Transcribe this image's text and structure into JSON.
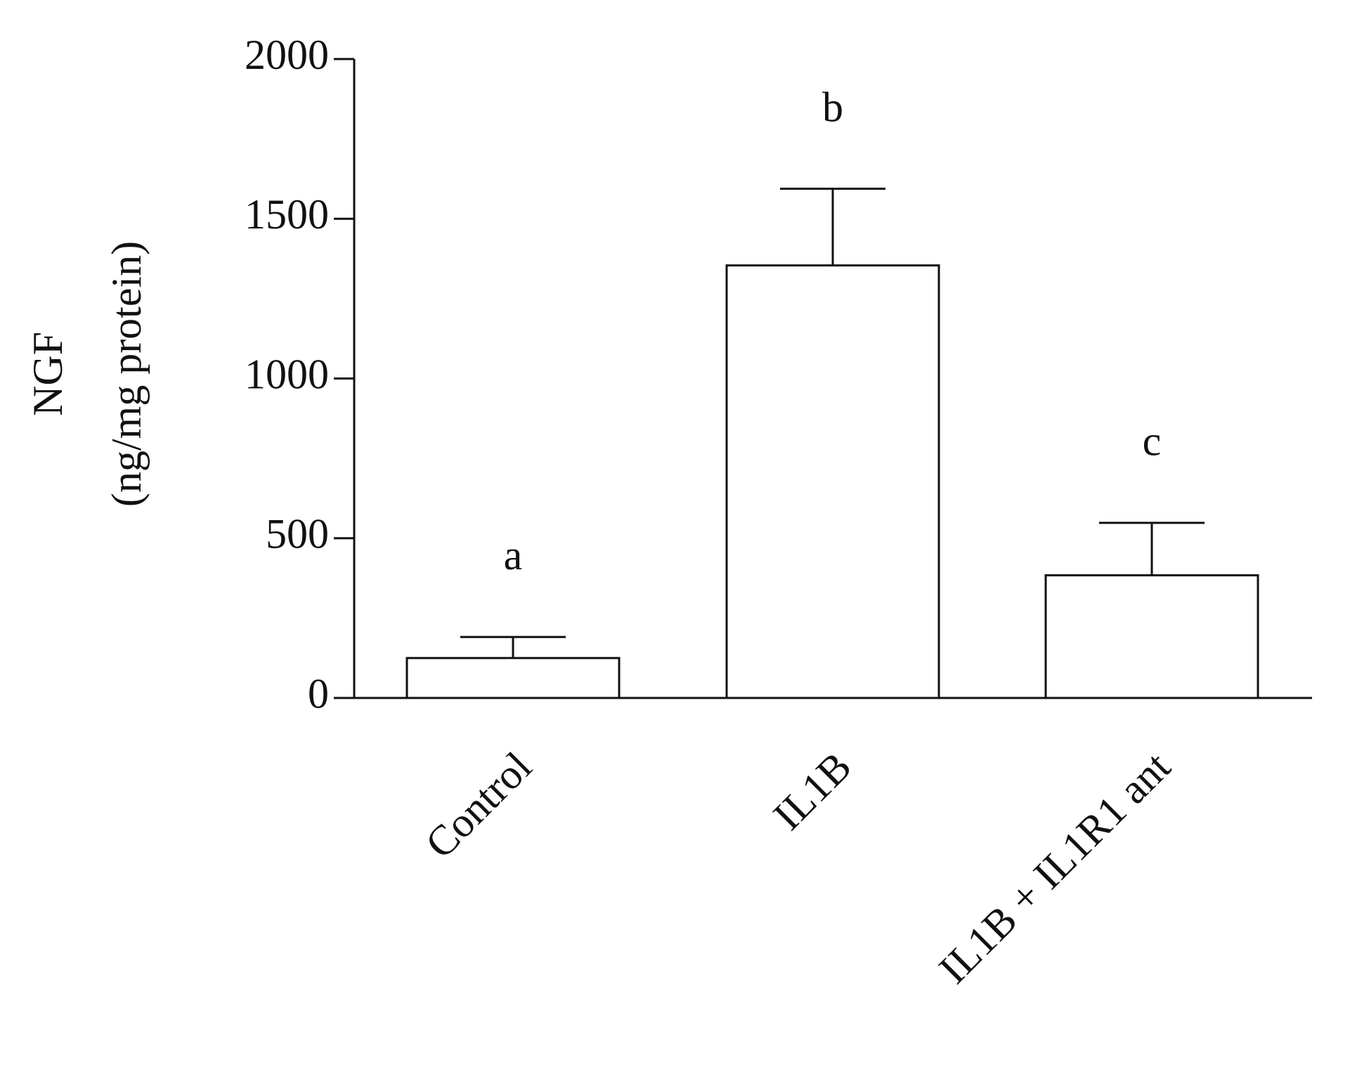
{
  "chart_data": {
    "type": "bar",
    "y_label": [
      "NGF",
      "(ng/mg protein)"
    ],
    "categories": [
      "Control",
      "IL1B",
      "IL1B + IL1R1 ant"
    ],
    "values": [
      125,
      1354,
      384
    ],
    "errors": [
      66,
      240,
      164
    ],
    "annotations": [
      "a",
      "b",
      "c"
    ],
    "color": "#ffffff",
    "ylim": [
      0,
      2000
    ],
    "yticks": [
      0,
      500,
      1000,
      1500,
      2000
    ]
  }
}
